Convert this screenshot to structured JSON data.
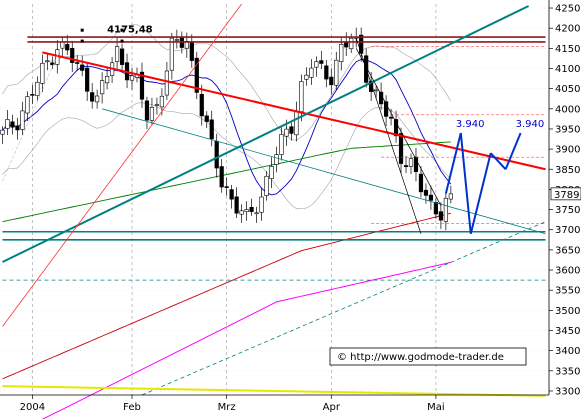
{
  "chart_data": {
    "type": "candlestick",
    "title": "",
    "xlabel": "",
    "ylabel": "",
    "ylim": [
      3290,
      4260
    ],
    "y_ticks": [
      3300,
      3350,
      3400,
      3450,
      3500,
      3550,
      3600,
      3650,
      3700,
      3750,
      3800,
      3850,
      3900,
      3950,
      4000,
      4050,
      4100,
      4150,
      4200,
      4250
    ],
    "x_ticks": [
      "2004",
      "Feb",
      "Mrz",
      "Apr",
      "Mai"
    ],
    "x_tick_pos": [
      6,
      26,
      45,
      66,
      87
    ],
    "n_bars": 110,
    "price_label": "3789",
    "grid": "dashed-vertical",
    "colors": {
      "up": "#ffffff",
      "down": "#000000",
      "resistance": "#8b1a1a",
      "support": "#008080",
      "downtrend": "#ff0000",
      "uptrend": "#008080",
      "ma_blue": "#0000cc",
      "ma_green": "#008000",
      "ma_red": "#cc0000",
      "ma_magenta": "#ff00ff",
      "long_ma_yellow": "#e6e600",
      "projection": "#0033cc"
    },
    "annotations": [
      {
        "text": "4175,48",
        "x": 21,
        "y": 4175,
        "color": "#000000"
      },
      {
        "text": "3.940",
        "x": 91,
        "y": 3940,
        "color": "#0000cc"
      },
      {
        "text": "3.940",
        "x": 103,
        "y": 3940,
        "color": "#0000cc"
      }
    ],
    "copyright": "© http://www.godmode-trader.de"
  }
}
